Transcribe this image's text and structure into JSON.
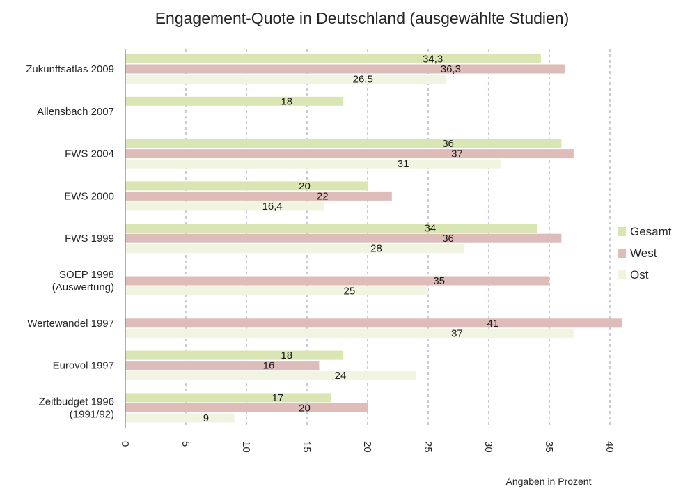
{
  "chart_data": {
    "type": "bar",
    "orientation": "horizontal",
    "title": "Engagement-Quote in Deutschland (ausgewählte Studien)",
    "xlabel": "Angaben in Prozent",
    "xlim": [
      0,
      40
    ],
    "xticks": [
      0,
      5,
      10,
      15,
      20,
      25,
      30,
      35,
      40
    ],
    "grid": "vertical-dashed",
    "legend_position": "right",
    "categories": [
      [
        "Zukunftsatlas 2009"
      ],
      [
        "Allensbach 2007"
      ],
      [
        "FWS 2004"
      ],
      [
        "EWS 2000"
      ],
      [
        "FWS 1999"
      ],
      [
        "SOEP 1998",
        "(Auswertung)"
      ],
      [
        "Wertewandel 1997"
      ],
      [
        "Eurovol 1997"
      ],
      [
        "Zeitbudget 1996",
        "(1991/92)"
      ]
    ],
    "series": [
      {
        "name": "Gesamt",
        "color": "#d9e6b3",
        "values": [
          34.3,
          18,
          36,
          20,
          34,
          null,
          null,
          18,
          17
        ],
        "labels": [
          "34,3",
          "18",
          "36",
          "20",
          "34",
          "",
          "",
          "18",
          "17"
        ]
      },
      {
        "name": "West",
        "color": "#ddbcb9",
        "values": [
          36.3,
          null,
          37,
          22,
          36,
          35,
          41,
          16,
          20
        ],
        "labels": [
          "36,3",
          "",
          "37",
          "22",
          "36",
          "35",
          "41",
          "16",
          "20"
        ]
      },
      {
        "name": "Ost",
        "color": "#f0f4e0",
        "values": [
          26.5,
          null,
          31,
          16.4,
          28,
          25,
          37,
          24,
          9
        ],
        "labels": [
          "26,5",
          "",
          "31",
          "16,4",
          "28",
          "25",
          "37",
          "24",
          "9"
        ]
      }
    ]
  }
}
